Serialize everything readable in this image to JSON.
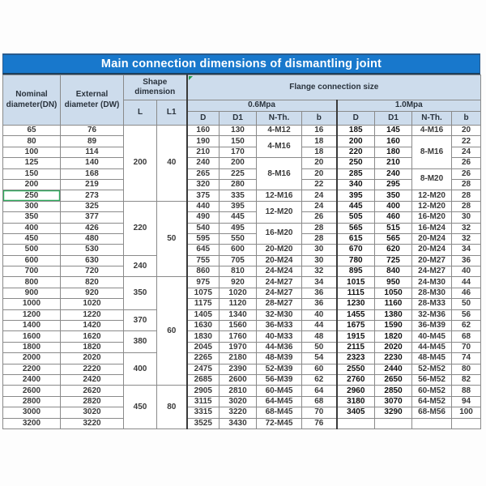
{
  "title": "Main connection dimensions of dismantling joint",
  "header": {
    "nominal": "Nominal diameter(DN)",
    "external": "External diameter (DW)",
    "shape": "Shape dimension",
    "flange": "Flange connection size",
    "L": "L",
    "L1": "L1",
    "p06": "0.6Mpa",
    "p10": "1.0Mpa",
    "sub": [
      "D",
      "D1",
      "N-Th.",
      "b"
    ]
  },
  "columns": [
    "nominal-diameter-dn",
    "external-diameter-dw",
    "shape-L",
    "shape-L1",
    "p06-D",
    "p06-D1",
    "p06-N-Th",
    "p06-b",
    "p10-D",
    "p10-D1",
    "p10-N-Th",
    "p10-b"
  ],
  "highlight": {
    "dn_value": "250",
    "color": "#2fae5f"
  },
  "colors": {
    "title_bg": "#1878cc",
    "header_bg": "#cddcec",
    "grid": "#8a8a8a",
    "flag_green": "#1f9e4e"
  },
  "rows": [
    [
      "65",
      "76",
      [
        "200",
        7
      ],
      [
        "40",
        7
      ],
      "160",
      "130",
      "4-M12",
      "16",
      "185",
      "145",
      "4-M16",
      "20"
    ],
    [
      "80",
      "89",
      null,
      null,
      "190",
      "150",
      [
        "4-M16",
        2
      ],
      "18",
      "200",
      "160",
      [
        "8-M16",
        3
      ],
      "22"
    ],
    [
      "100",
      "114",
      null,
      null,
      "210",
      "170",
      null,
      "18",
      "220",
      "180",
      null,
      "24"
    ],
    [
      "125",
      "140",
      null,
      null,
      "240",
      "200",
      [
        "8-M16",
        3
      ],
      "20",
      "250",
      "210",
      null,
      "26"
    ],
    [
      "150",
      "168",
      null,
      null,
      "265",
      "225",
      null,
      "20",
      "285",
      "240",
      [
        "8-M20",
        2
      ],
      "26"
    ],
    [
      "200",
      "219",
      null,
      null,
      "320",
      "280",
      null,
      "22",
      "340",
      "295",
      null,
      "28"
    ],
    [
      "250",
      "273",
      null,
      null,
      "375",
      "335",
      "12-M16",
      "24",
      "395",
      "350",
      "12-M20",
      "28"
    ],
    [
      "300",
      "325",
      [
        "220",
        5
      ],
      [
        "50",
        7
      ],
      "440",
      "395",
      [
        "12-M20",
        2
      ],
      "24",
      "445",
      "400",
      "12-M20",
      "28"
    ],
    [
      "350",
      "377",
      null,
      null,
      "490",
      "445",
      null,
      "26",
      "505",
      "460",
      "16-M20",
      "30"
    ],
    [
      "400",
      "426",
      null,
      null,
      "540",
      "495",
      [
        "16-M20",
        2
      ],
      "28",
      "565",
      "515",
      "16-M24",
      "32"
    ],
    [
      "450",
      "480",
      null,
      null,
      "595",
      "550",
      null,
      "28",
      "615",
      "565",
      "20-M24",
      "32"
    ],
    [
      "500",
      "530",
      null,
      null,
      "645",
      "600",
      "20-M20",
      "30",
      "670",
      "620",
      "20-M24",
      "34"
    ],
    [
      "600",
      "630",
      [
        "240",
        2
      ],
      null,
      "755",
      "705",
      "20-M24",
      "30",
      "780",
      "725",
      "20-M27",
      "36"
    ],
    [
      "700",
      "720",
      null,
      null,
      "860",
      "810",
      "24-M24",
      "32",
      "895",
      "840",
      "24-M27",
      "40"
    ],
    [
      "800",
      "820",
      [
        "350",
        3
      ],
      [
        "60",
        10
      ],
      "975",
      "920",
      "24-M27",
      "34",
      "1015",
      "950",
      "24-M30",
      "44"
    ],
    [
      "900",
      "920",
      null,
      null,
      "1075",
      "1020",
      "24-M27",
      "36",
      "1115",
      "1050",
      "28-M30",
      "46"
    ],
    [
      "1000",
      "1020",
      null,
      null,
      "1175",
      "1120",
      "28-M27",
      "36",
      "1230",
      "1160",
      "28-M33",
      "50"
    ],
    [
      "1200",
      "1220",
      [
        "370",
        2
      ],
      null,
      "1405",
      "1340",
      "32-M30",
      "40",
      "1455",
      "1380",
      "32-M36",
      "56"
    ],
    [
      "1400",
      "1420",
      null,
      null,
      "1630",
      "1560",
      "36-M33",
      "44",
      "1675",
      "1590",
      "36-M39",
      "62"
    ],
    [
      "1600",
      "1620",
      [
        "380",
        2
      ],
      null,
      "1830",
      "1760",
      "40-M33",
      "48",
      "1915",
      "1820",
      "40-M45",
      "68"
    ],
    [
      "1800",
      "1820",
      null,
      null,
      "2045",
      "1970",
      "44-M36",
      "50",
      "2115",
      "2020",
      "44-M45",
      "70"
    ],
    [
      "2000",
      "2020",
      [
        "400",
        3
      ],
      null,
      "2265",
      "2180",
      "48-M39",
      "54",
      "2323",
      "2230",
      "48-M45",
      "74"
    ],
    [
      "2200",
      "2220",
      null,
      null,
      "2475",
      "2390",
      "52-M39",
      "60",
      "2550",
      "2440",
      "52-M52",
      "80"
    ],
    [
      "2400",
      "2420",
      null,
      null,
      "2685",
      "2600",
      "56-M39",
      "62",
      "2760",
      "2650",
      "56-M52",
      "82"
    ],
    [
      "2600",
      "2620",
      [
        "450",
        4
      ],
      [
        "80",
        4
      ],
      "2905",
      "2810",
      "60-M45",
      "64",
      "2960",
      "2850",
      "60-M52",
      "88"
    ],
    [
      "2800",
      "2820",
      null,
      null,
      "3115",
      "3020",
      "64-M45",
      "68",
      "3180",
      "3070",
      "64-M52",
      "94"
    ],
    [
      "3000",
      "3020",
      null,
      null,
      "3315",
      "3220",
      "68-M45",
      "70",
      "3405",
      "3290",
      "68-M56",
      "100"
    ],
    [
      "3200",
      "3220",
      null,
      null,
      "3525",
      "3430",
      "72-M45",
      "76",
      "",
      "",
      "",
      ""
    ]
  ]
}
